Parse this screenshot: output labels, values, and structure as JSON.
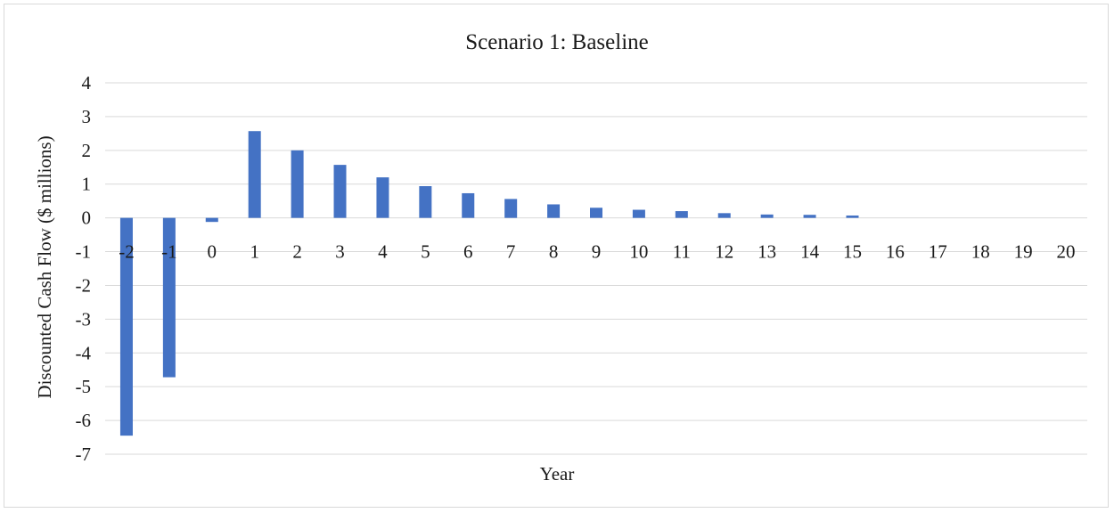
{
  "chart_data": {
    "type": "bar",
    "title": "Scenario 1: Baseline",
    "xlabel": "Year",
    "ylabel": "Discounted Cash Flow ($ millions)",
    "ylim": [
      -7,
      4
    ],
    "yticks": [
      4,
      3,
      2,
      1,
      0,
      -1,
      -2,
      -3,
      -4,
      -5,
      -6,
      -7
    ],
    "grid": true,
    "legend": "none",
    "categories": [
      "-2",
      "-1",
      "0",
      "1",
      "2",
      "3",
      "4",
      "5",
      "6",
      "7",
      "8",
      "9",
      "10",
      "11",
      "12",
      "13",
      "14",
      "15",
      "16",
      "17",
      "18",
      "19",
      "20"
    ],
    "series": [
      {
        "color": "#4472c4",
        "values": [
          -6.45,
          -4.72,
          -0.12,
          2.57,
          2.0,
          1.57,
          1.2,
          0.94,
          0.73,
          0.56,
          0.4,
          0.3,
          0.24,
          0.2,
          0.14,
          0.1,
          0.09,
          0.07,
          0.0,
          0.0,
          0.0,
          0.0,
          0.0
        ]
      }
    ]
  }
}
